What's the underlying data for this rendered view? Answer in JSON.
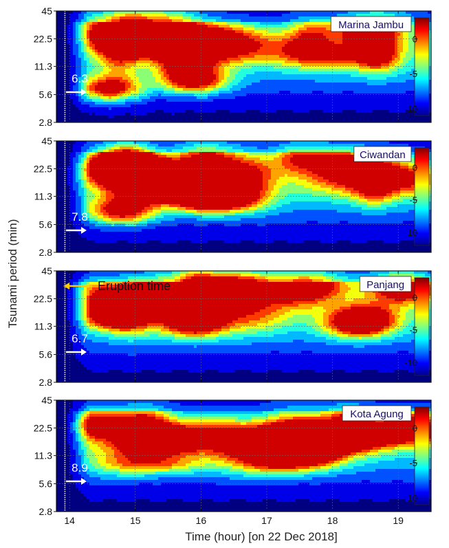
{
  "figure": {
    "ylabel": "Tsunami period (min)",
    "xlabel": "Time (hour) [on 22 Dec 2018]",
    "eruption_label": "Eruption time"
  },
  "chart_data": [
    {
      "type": "heatmap",
      "station": "Marina Jambu",
      "annotation": "6.3",
      "x_ticks": [
        14,
        15,
        16,
        17,
        18,
        19
      ],
      "xlim": [
        13.8,
        19.5
      ],
      "y_ticks": [
        "45",
        "22.5",
        "11.3",
        "5.6",
        "2.8"
      ],
      "ylim": [
        2.8,
        45
      ],
      "y_scale": "log",
      "colorbar_ticks": [
        0,
        -5,
        -10
      ],
      "colorbar_range": [
        -11,
        3
      ],
      "hotspots": [
        {
          "t": 14.6,
          "period": 6.3
        },
        {
          "t": 14.85,
          "period": 22.5
        },
        {
          "t": 15.9,
          "period": 8
        }
      ],
      "grid": true
    },
    {
      "type": "heatmap",
      "station": "Ciwandan",
      "annotation": "7.8",
      "x_ticks": [
        14,
        15,
        16,
        17,
        18,
        19
      ],
      "xlim": [
        13.8,
        19.5
      ],
      "y_ticks": [
        "45",
        "22.5",
        "11.3",
        "5.6",
        "2.8"
      ],
      "ylim": [
        2.8,
        45
      ],
      "y_scale": "log",
      "colorbar_ticks": [
        0,
        -5,
        -10
      ],
      "colorbar_range": [
        -12,
        3
      ],
      "hotspots": [
        {
          "t": 15.3,
          "period": 14
        },
        {
          "t": 14.8,
          "period": 8
        },
        {
          "t": 16.1,
          "period": 11
        }
      ],
      "grid": true
    },
    {
      "type": "heatmap",
      "station": "Panjang",
      "annotation": "6.7",
      "x_ticks": [
        14,
        15,
        16,
        17,
        18,
        19
      ],
      "xlim": [
        13.8,
        19.5
      ],
      "y_ticks": [
        "45",
        "22.5",
        "11.3",
        "5.6",
        "2.8"
      ],
      "ylim": [
        2.8,
        45
      ],
      "y_scale": "log",
      "colorbar_ticks": [
        0,
        -5,
        -10
      ],
      "colorbar_range": [
        -12,
        3
      ],
      "hotspots": [
        {
          "t": 16.2,
          "period": 30
        },
        {
          "t": 15.9,
          "period": 12
        },
        {
          "t": 18.4,
          "period": 12
        }
      ],
      "grid": true
    },
    {
      "type": "heatmap",
      "station": "Kota Agung",
      "annotation": "8.9",
      "x_ticks": [
        14,
        15,
        16,
        17,
        18,
        19
      ],
      "xlim": [
        13.8,
        19.5
      ],
      "y_ticks": [
        "45",
        "22.5",
        "11.3",
        "5.6",
        "2.8"
      ],
      "ylim": [
        2.8,
        45
      ],
      "y_scale": "log",
      "colorbar_ticks": [
        0,
        -5,
        -10
      ],
      "colorbar_range": [
        -11,
        3
      ],
      "hotspots": [
        {
          "t": 17.2,
          "period": 17
        },
        {
          "t": 15.3,
          "period": 17
        },
        {
          "t": 18.3,
          "period": 17
        }
      ],
      "grid": true
    }
  ]
}
